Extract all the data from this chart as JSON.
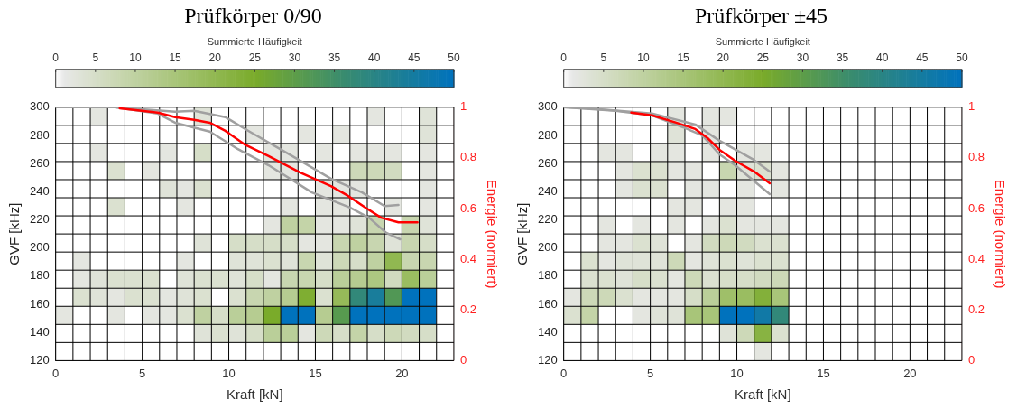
{
  "chart_data": [
    {
      "type": "heatmap",
      "title": "Prüfkörper 0/90",
      "xlabel": "Kraft [kN]",
      "ylabel": "GVF [kHz]",
      "y2label": "Energie (normiert)",
      "clabel": "Summierte Häufigkeit",
      "x": [
        0.5,
        1.5,
        2.5,
        3.5,
        4.5,
        5.5,
        6.5,
        7.5,
        8.5,
        9.5,
        10.5,
        11.5,
        12.5,
        13.5,
        14.5,
        15.5,
        16.5,
        17.5,
        18.5,
        19.5,
        20.5,
        21.5,
        22.5
      ],
      "xlim": [
        0,
        23
      ],
      "xticks": [
        0,
        5,
        10,
        15,
        20
      ],
      "ylim": [
        120,
        300
      ],
      "yticks": [
        120,
        140,
        160,
        180,
        200,
        220,
        240,
        260,
        280,
        300
      ],
      "y2lim": [
        0,
        1
      ],
      "y2ticks": [
        0,
        0.2,
        0.4,
        0.6,
        0.8,
        1
      ],
      "clim": [
        0,
        50
      ],
      "cticks": [
        0,
        5,
        10,
        15,
        20,
        25,
        30,
        35,
        40,
        45,
        50
      ],
      "grid": true,
      "cells": [
        [
          0,
          0,
          2,
          0,
          0,
          0,
          0,
          0,
          3,
          0,
          0,
          0,
          0,
          0,
          0,
          0,
          0,
          0,
          2,
          0,
          0,
          3,
          0
        ],
        [
          0,
          0,
          0,
          0,
          0,
          0,
          0,
          0,
          0,
          0,
          0,
          2,
          0,
          0,
          2,
          0,
          2,
          0,
          0,
          0,
          0,
          3,
          0
        ],
        [
          0,
          0,
          2,
          0,
          0,
          0,
          2,
          0,
          5,
          0,
          0,
          0,
          2,
          2,
          0,
          2,
          0,
          2,
          2,
          2,
          0,
          2,
          0
        ],
        [
          0,
          0,
          0,
          4,
          0,
          2,
          0,
          0,
          0,
          0,
          0,
          0,
          2,
          2,
          0,
          0,
          0,
          7,
          7,
          6,
          0,
          2,
          0
        ],
        [
          0,
          0,
          0,
          0,
          0,
          0,
          3,
          2,
          4,
          0,
          0,
          0,
          0,
          0,
          0,
          2,
          2,
          2,
          0,
          0,
          0,
          2,
          0
        ],
        [
          0,
          0,
          0,
          4,
          0,
          0,
          0,
          2,
          0,
          0,
          0,
          0,
          0,
          2,
          0,
          2,
          2,
          0,
          0,
          2,
          0,
          2,
          0
        ],
        [
          0,
          0,
          0,
          0,
          0,
          0,
          0,
          0,
          0,
          0,
          0,
          0,
          2,
          10,
          9,
          2,
          2,
          3,
          8,
          0,
          8,
          3,
          0
        ],
        [
          0,
          0,
          0,
          0,
          0,
          0,
          0,
          0,
          3,
          0,
          5,
          5,
          5,
          5,
          2,
          2,
          8,
          10,
          8,
          3,
          8,
          5,
          0
        ],
        [
          0,
          2,
          0,
          0,
          0,
          0,
          0,
          2,
          0,
          0,
          3,
          3,
          4,
          3,
          8,
          3,
          7,
          5,
          10,
          20,
          8,
          8,
          0
        ],
        [
          0,
          2,
          3,
          4,
          4,
          4,
          0,
          3,
          4,
          4,
          3,
          5,
          2,
          8,
          8,
          5,
          11,
          12,
          14,
          6,
          18,
          11,
          0
        ],
        [
          0,
          4,
          3,
          2,
          4,
          4,
          2,
          3,
          4,
          0,
          4,
          8,
          10,
          12,
          24,
          4,
          19,
          38,
          44,
          32,
          50,
          50,
          0
        ],
        [
          2,
          0,
          0,
          2,
          0,
          2,
          2,
          4,
          10,
          5,
          11,
          12,
          25,
          50,
          50,
          12,
          31,
          50,
          50,
          50,
          50,
          50,
          0
        ],
        [
          0,
          0,
          0,
          0,
          0,
          0,
          0,
          0,
          3,
          4,
          3,
          5,
          11,
          11,
          2,
          7,
          5,
          9,
          5,
          7,
          6,
          5,
          0
        ],
        [
          0,
          0,
          0,
          0,
          0,
          0,
          0,
          0,
          0,
          0,
          0,
          0,
          0,
          0,
          0,
          0,
          0,
          0,
          0,
          0,
          0,
          0,
          0
        ]
      ],
      "series": [
        {
          "type": "line",
          "axis": "y2",
          "color": "#a0a0a0",
          "x": [
            0,
            3.4,
            6.9,
            8,
            9.8,
            11.2,
            13.4,
            15.9,
            17.7,
            19,
            19.8
          ],
          "values": [
            1,
            1,
            0.982,
            0.986,
            0.961,
            0.904,
            0.818,
            0.718,
            0.664,
            0.61,
            0.614
          ]
        },
        {
          "type": "line",
          "axis": "y2",
          "color": "#a0a0a0",
          "x": [
            0,
            3.4,
            5.9,
            6.9,
            8.9,
            10.5,
            12.3,
            14.8,
            17,
            18.1,
            19.1,
            19.9
          ],
          "values": [
            1,
            1,
            0.975,
            0.939,
            0.904,
            0.836,
            0.771,
            0.664,
            0.604,
            0.564,
            0.504,
            0.479
          ]
        },
        {
          "type": "line",
          "axis": "y2",
          "color": "#ff0000",
          "x": [
            3.7,
            5.9,
            6.9,
            8,
            8.9,
            9.8,
            10.9,
            12.3,
            14.1,
            15.9,
            16.8,
            17.9,
            18.8,
            19.8,
            20.9
          ],
          "values": [
            0.996,
            0.979,
            0.961,
            0.95,
            0.939,
            0.907,
            0.854,
            0.807,
            0.743,
            0.689,
            0.654,
            0.604,
            0.564,
            0.546,
            0.546
          ]
        }
      ]
    },
    {
      "type": "heatmap",
      "title": "Prüfkörper ±45",
      "xlabel": "Kraft [kN]",
      "ylabel": "GVF [kHz]",
      "y2label": "Energie (normiert)",
      "clabel": "Summierte Häufigkeit",
      "x": [
        0.5,
        1.5,
        2.5,
        3.5,
        4.5,
        5.5,
        6.5,
        7.5,
        8.5,
        9.5,
        10.5,
        11.5,
        12.5,
        13.5,
        14.5,
        15.5,
        16.5,
        17.5,
        18.5,
        19.5,
        20.5,
        21.5,
        22.5
      ],
      "xlim": [
        0,
        23
      ],
      "xticks": [
        0,
        5,
        10,
        15,
        20
      ],
      "ylim": [
        120,
        300
      ],
      "yticks": [
        120,
        140,
        160,
        180,
        200,
        220,
        240,
        260,
        280,
        300
      ],
      "y2lim": [
        0,
        1
      ],
      "y2ticks": [
        0,
        0.2,
        0.4,
        0.6,
        0.8,
        1
      ],
      "clim": [
        0,
        50
      ],
      "cticks": [
        0,
        5,
        10,
        15,
        20,
        25,
        30,
        35,
        40,
        45,
        50
      ],
      "grid": true,
      "cells": [
        [
          0,
          0,
          0,
          0,
          0,
          0,
          2,
          0,
          2,
          2,
          0,
          0,
          0,
          0,
          0,
          0,
          0,
          0,
          0,
          0,
          0,
          0,
          0
        ],
        [
          0,
          0,
          0,
          0,
          0,
          0,
          3,
          0,
          2,
          0,
          0,
          0,
          0,
          0,
          0,
          0,
          0,
          0,
          0,
          0,
          0,
          0,
          0
        ],
        [
          0,
          0,
          2,
          2,
          0,
          2,
          2,
          0,
          2,
          0,
          2,
          2,
          0,
          0,
          0,
          0,
          0,
          0,
          0,
          0,
          0,
          0,
          0
        ],
        [
          0,
          0,
          0,
          2,
          4,
          4,
          2,
          2,
          0,
          8,
          3,
          4,
          2,
          0,
          0,
          0,
          0,
          0,
          0,
          0,
          0,
          0,
          0
        ],
        [
          0,
          0,
          0,
          2,
          4,
          4,
          0,
          2,
          2,
          0,
          2,
          0,
          2,
          0,
          0,
          0,
          0,
          0,
          0,
          0,
          0,
          0,
          0
        ],
        [
          0,
          0,
          0,
          0,
          0,
          0,
          2,
          2,
          0,
          2,
          2,
          0,
          0,
          0,
          0,
          0,
          0,
          0,
          0,
          0,
          0,
          0,
          0
        ],
        [
          0,
          0,
          2,
          0,
          2,
          0,
          2,
          0,
          2,
          4,
          2,
          2,
          2,
          0,
          0,
          0,
          0,
          0,
          0,
          0,
          0,
          0,
          0
        ],
        [
          0,
          0,
          2,
          2,
          4,
          3,
          0,
          2,
          6,
          7,
          6,
          4,
          4,
          0,
          0,
          0,
          0,
          0,
          0,
          0,
          0,
          0,
          0
        ],
        [
          0,
          4,
          2,
          3,
          3,
          3,
          7,
          2,
          3,
          4,
          3,
          4,
          4,
          0,
          0,
          0,
          0,
          0,
          0,
          0,
          0,
          0,
          0
        ],
        [
          0,
          4,
          4,
          3,
          5,
          4,
          2,
          7,
          4,
          5,
          5,
          6,
          7,
          0,
          0,
          0,
          0,
          0,
          0,
          0,
          0,
          0,
          0
        ],
        [
          2,
          7,
          7,
          4,
          2,
          2,
          2,
          5,
          11,
          17,
          18,
          23,
          15,
          0,
          0,
          0,
          0,
          0,
          0,
          0,
          0,
          0,
          0
        ],
        [
          4,
          9,
          0,
          0,
          2,
          3,
          3,
          15,
          15,
          50,
          50,
          46,
          38,
          0,
          0,
          0,
          0,
          0,
          0,
          0,
          0,
          0,
          0
        ],
        [
          0,
          0,
          0,
          0,
          0,
          0,
          0,
          0,
          0,
          3,
          7,
          22,
          4,
          0,
          0,
          0,
          0,
          0,
          0,
          0,
          0,
          0,
          0
        ],
        [
          0,
          0,
          0,
          0,
          0,
          0,
          0,
          0,
          0,
          0,
          0,
          2,
          0,
          0,
          0,
          0,
          0,
          0,
          0,
          0,
          0,
          0,
          0
        ]
      ],
      "series": [
        {
          "type": "line",
          "axis": "y2",
          "color": "#a0a0a0",
          "x": [
            0,
            1.9,
            5.1,
            7.6,
            9,
            10.9,
            11.9
          ],
          "values": [
            1,
            0.993,
            0.975,
            0.932,
            0.868,
            0.796,
            0.746
          ]
        },
        {
          "type": "line",
          "axis": "y2",
          "color": "#a0a0a0",
          "x": [
            0,
            3,
            5.1,
            6.9,
            8,
            9,
            9.9,
            11.9
          ],
          "values": [
            1,
            0.986,
            0.968,
            0.921,
            0.889,
            0.814,
            0.771,
            0.657
          ]
        },
        {
          "type": "line",
          "axis": "y2",
          "color": "#ff0000",
          "x": [
            3.9,
            5.1,
            6.5,
            7.6,
            8.3,
            9,
            9.9,
            11,
            11.9
          ],
          "values": [
            0.979,
            0.968,
            0.939,
            0.914,
            0.879,
            0.832,
            0.789,
            0.746,
            0.7
          ]
        }
      ]
    }
  ]
}
